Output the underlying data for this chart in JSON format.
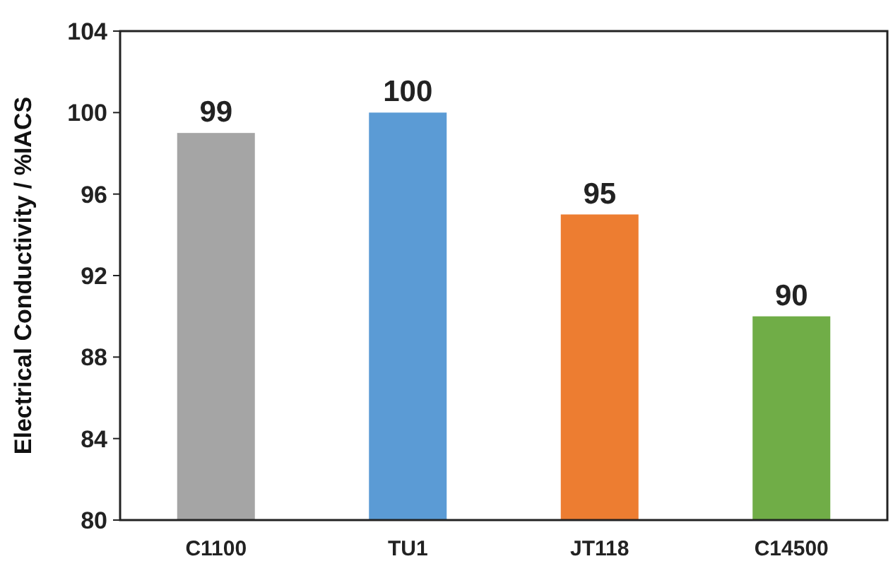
{
  "chart_data": {
    "type": "bar",
    "ylabel": "Electrical Conductivity / %IACS",
    "categories": [
      "C1100",
      "TU1",
      "JT118",
      "C14500"
    ],
    "values": [
      99,
      100,
      95,
      90
    ],
    "colors": [
      "#a5a5a5",
      "#5b9bd5",
      "#ed7d31",
      "#70ad47"
    ],
    "ylim": [
      80,
      104
    ],
    "yticks": [
      80,
      84,
      88,
      92,
      96,
      100,
      104
    ],
    "grid": false,
    "data_labels": true
  }
}
